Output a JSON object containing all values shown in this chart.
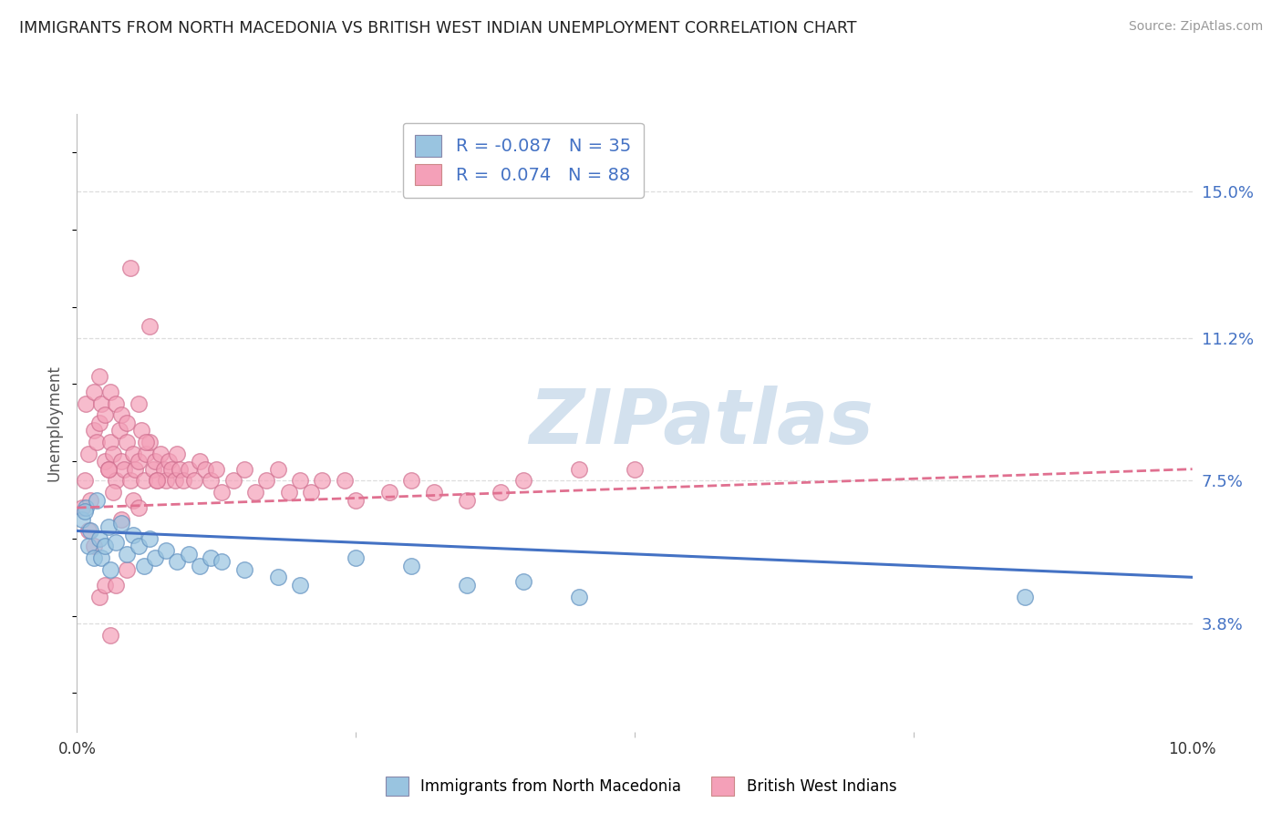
{
  "title": "IMMIGRANTS FROM NORTH MACEDONIA VS BRITISH WEST INDIAN UNEMPLOYMENT CORRELATION CHART",
  "source": "Source: ZipAtlas.com",
  "ylabel": "Unemployment",
  "yticks": [
    3.8,
    7.5,
    11.2,
    15.0
  ],
  "ytick_labels": [
    "3.8%",
    "7.5%",
    "11.2%",
    "15.0%"
  ],
  "xlim": [
    0.0,
    10.0
  ],
  "ylim": [
    1.0,
    17.0
  ],
  "blue_R": -0.087,
  "blue_N": 35,
  "pink_R": 0.074,
  "pink_N": 88,
  "blue_color": "#99c4e0",
  "pink_color": "#f4a0b8",
  "blue_edge_color": "#6090c0",
  "pink_edge_color": "#d07090",
  "blue_line_color": "#4472c4",
  "pink_line_color": "#e07090",
  "blue_label": "Immigrants from North Macedonia",
  "pink_label": "British West Indians",
  "blue_scatter_x": [
    0.05,
    0.08,
    0.1,
    0.12,
    0.15,
    0.18,
    0.2,
    0.22,
    0.25,
    0.28,
    0.3,
    0.35,
    0.4,
    0.45,
    0.5,
    0.55,
    0.6,
    0.65,
    0.7,
    0.8,
    0.9,
    1.0,
    1.1,
    1.2,
    1.3,
    1.5,
    1.8,
    2.0,
    2.5,
    3.0,
    3.5,
    4.0,
    4.5,
    8.5,
    0.07
  ],
  "blue_scatter_y": [
    6.5,
    6.8,
    5.8,
    6.2,
    5.5,
    7.0,
    6.0,
    5.5,
    5.8,
    6.3,
    5.2,
    5.9,
    6.4,
    5.6,
    6.1,
    5.8,
    5.3,
    6.0,
    5.5,
    5.7,
    5.4,
    5.6,
    5.3,
    5.5,
    5.4,
    5.2,
    5.0,
    4.8,
    5.5,
    5.3,
    4.8,
    4.9,
    4.5,
    4.5,
    6.7
  ],
  "pink_scatter_x": [
    0.05,
    0.07,
    0.08,
    0.1,
    0.12,
    0.15,
    0.15,
    0.18,
    0.2,
    0.2,
    0.22,
    0.25,
    0.25,
    0.28,
    0.3,
    0.3,
    0.32,
    0.35,
    0.35,
    0.38,
    0.4,
    0.4,
    0.42,
    0.45,
    0.45,
    0.48,
    0.5,
    0.52,
    0.55,
    0.55,
    0.58,
    0.6,
    0.62,
    0.65,
    0.68,
    0.7,
    0.72,
    0.75,
    0.78,
    0.8,
    0.82,
    0.85,
    0.88,
    0.9,
    0.92,
    0.95,
    1.0,
    1.05,
    1.1,
    1.15,
    1.2,
    1.25,
    1.3,
    1.4,
    1.5,
    1.6,
    1.7,
    1.8,
    1.9,
    2.0,
    2.1,
    2.2,
    2.5,
    2.8,
    3.0,
    3.2,
    3.5,
    3.8,
    4.0,
    4.5,
    0.1,
    0.15,
    0.2,
    0.25,
    0.3,
    0.35,
    0.4,
    0.45,
    0.5,
    0.55,
    0.28,
    0.32,
    0.62,
    0.72,
    5.0,
    0.48,
    0.65,
    2.4
  ],
  "pink_scatter_y": [
    6.8,
    7.5,
    9.5,
    8.2,
    7.0,
    8.8,
    9.8,
    8.5,
    10.2,
    9.0,
    9.5,
    8.0,
    9.2,
    7.8,
    8.5,
    9.8,
    8.2,
    9.5,
    7.5,
    8.8,
    8.0,
    9.2,
    7.8,
    8.5,
    9.0,
    7.5,
    8.2,
    7.8,
    8.0,
    9.5,
    8.8,
    7.5,
    8.2,
    8.5,
    7.8,
    8.0,
    7.5,
    8.2,
    7.8,
    7.5,
    8.0,
    7.8,
    7.5,
    8.2,
    7.8,
    7.5,
    7.8,
    7.5,
    8.0,
    7.8,
    7.5,
    7.8,
    7.2,
    7.5,
    7.8,
    7.2,
    7.5,
    7.8,
    7.2,
    7.5,
    7.2,
    7.5,
    7.0,
    7.2,
    7.5,
    7.2,
    7.0,
    7.2,
    7.5,
    7.8,
    6.2,
    5.8,
    4.5,
    4.8,
    3.5,
    4.8,
    6.5,
    5.2,
    7.0,
    6.8,
    7.8,
    7.2,
    8.5,
    7.5,
    7.8,
    13.0,
    11.5,
    7.5
  ],
  "watermark_text": "ZIPatlas",
  "watermark_color": "#ccdcec",
  "grid_color": "#dddddd",
  "title_color": "#222222",
  "right_axis_color": "#4472c4"
}
